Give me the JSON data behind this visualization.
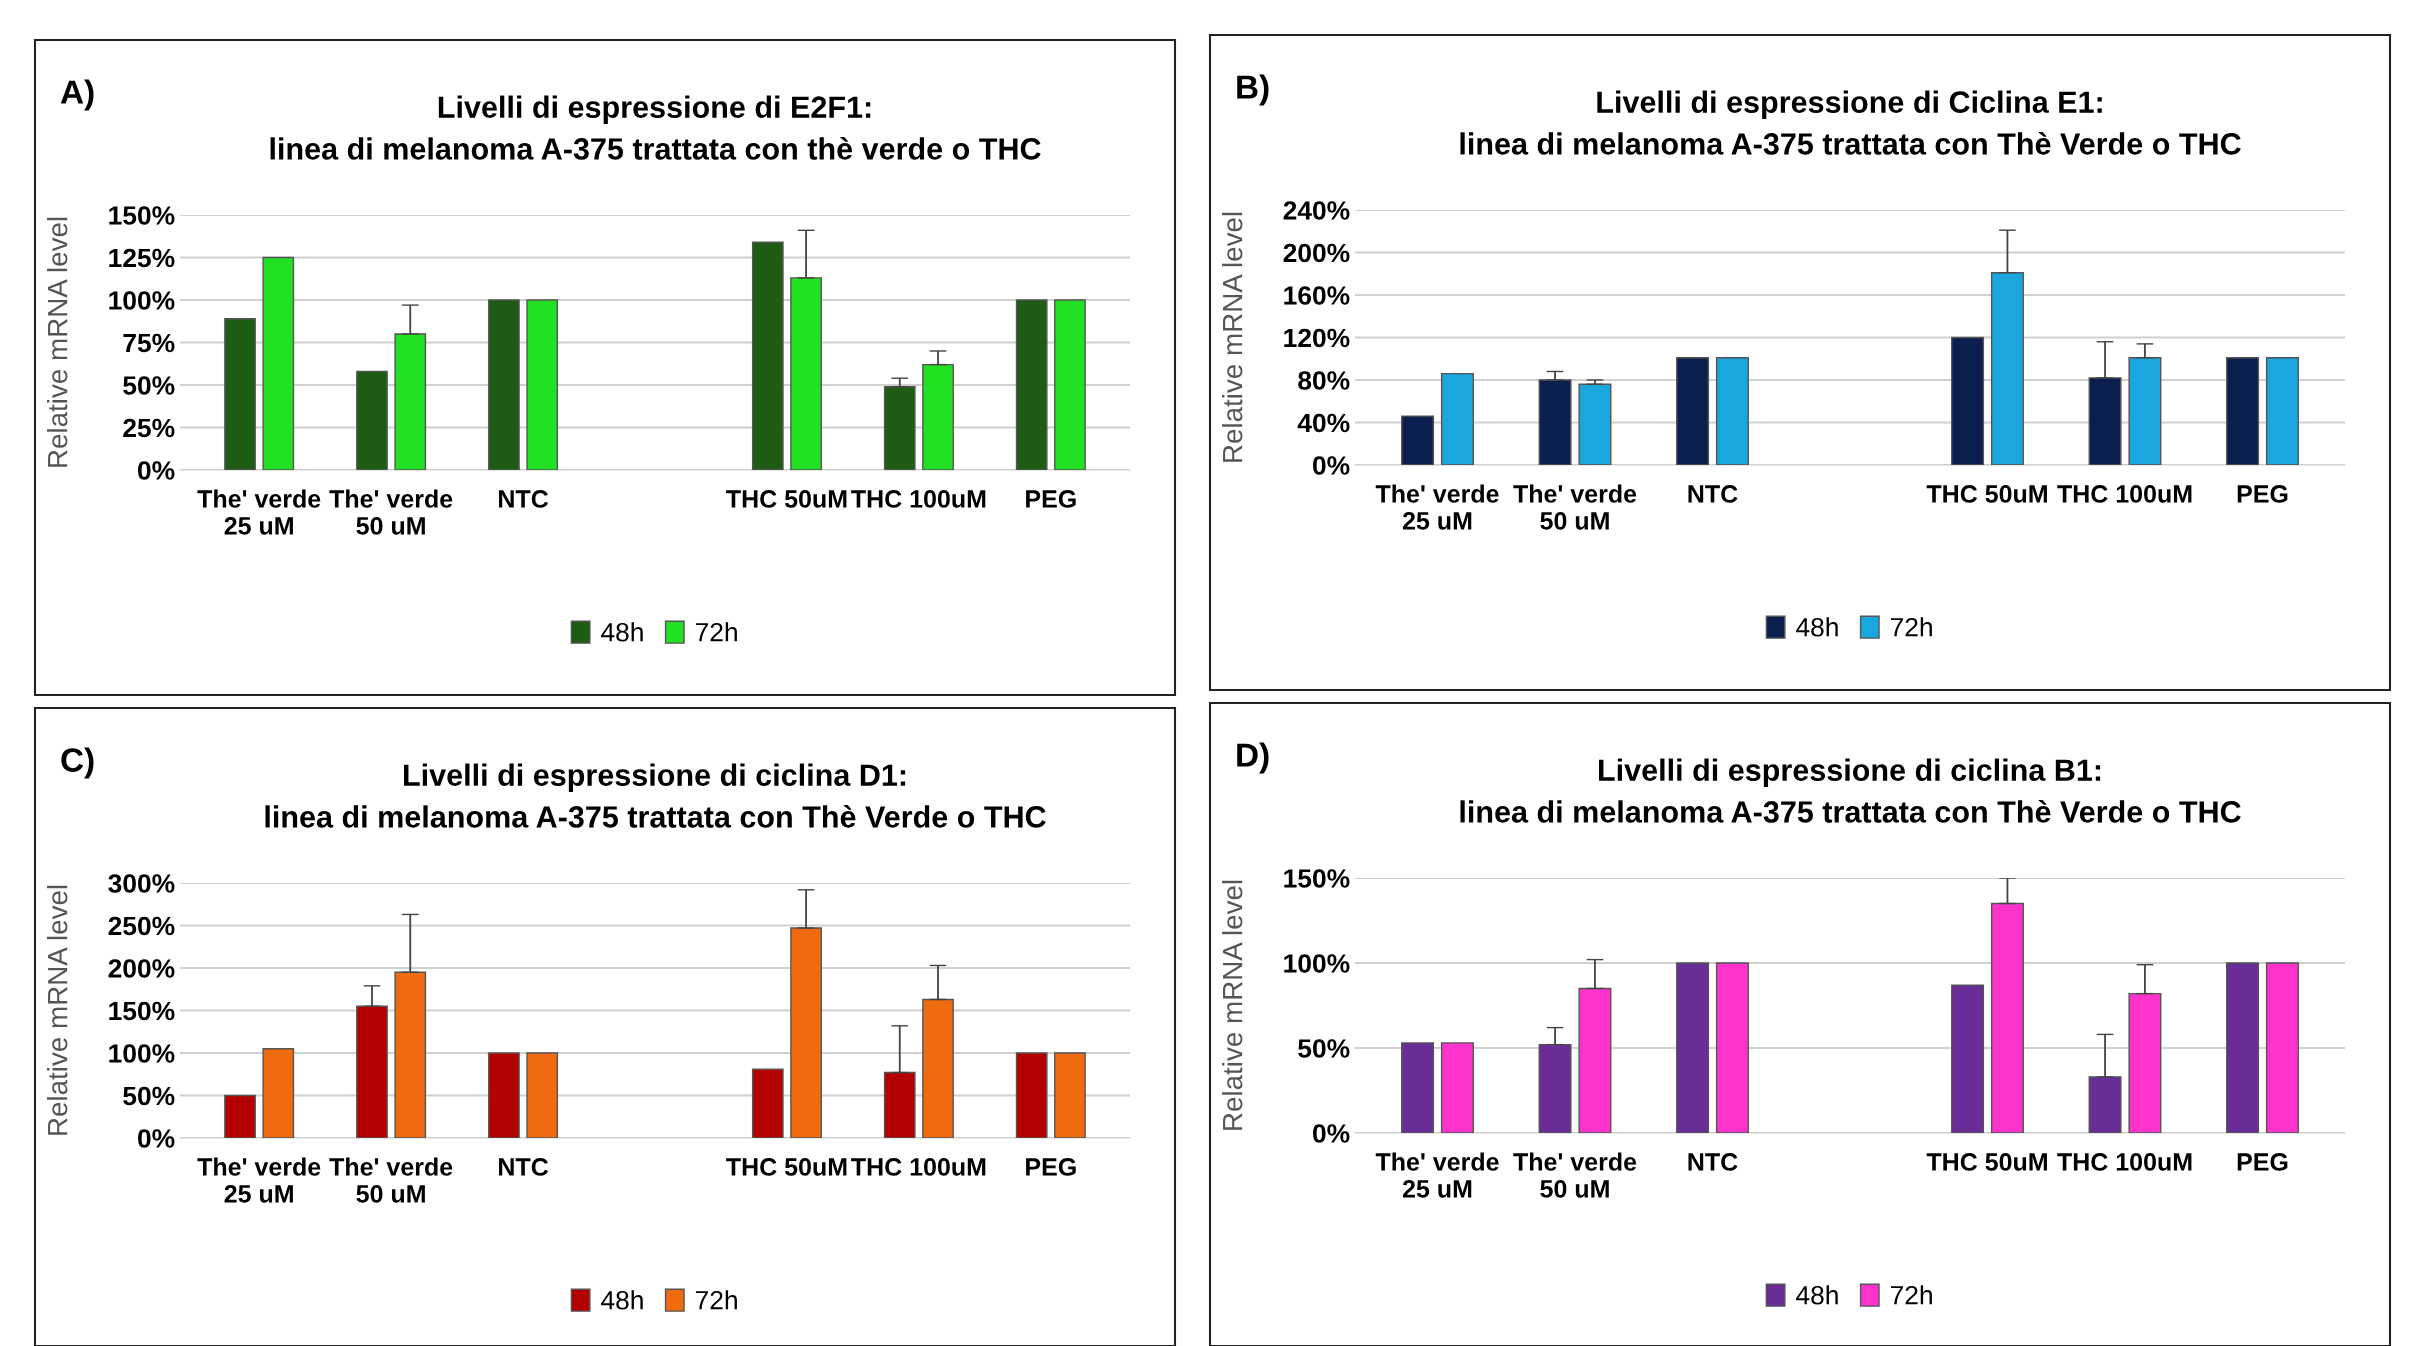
{
  "chart_data": [
    {
      "type": "bar",
      "title": "Livelli di espressione di E2F1:\nlinea di melanoma A-375 trattata con thè verde o THC",
      "ylabel": "Relative mRNA level",
      "annotations": [
        "A)"
      ],
      "categories": [
        "The' verde 25 uM",
        "The' verde 50 uM",
        "NTC",
        null,
        "THC 50uM",
        "THC 100uM",
        "PEG"
      ],
      "ylim": [
        0,
        150
      ],
      "yticks": [
        {
          "value": 0,
          "label": "0%"
        },
        {
          "value": 25,
          "label": "25%"
        },
        {
          "value": 50,
          "label": "50%"
        },
        {
          "value": 75,
          "label": "75%"
        },
        {
          "value": 100,
          "label": "100%"
        },
        {
          "value": 125,
          "label": "125%"
        },
        {
          "value": 150,
          "label": "150%"
        }
      ],
      "grid": "y",
      "legend": "bottom",
      "series": [
        {
          "name": "48h",
          "color": "#1e5c14",
          "values": [
            89,
            58,
            100,
            null,
            134,
            49,
            100
          ],
          "errors": [
            null,
            null,
            null,
            null,
            null,
            [
              49,
              54
            ],
            null
          ]
        },
        {
          "name": "72h",
          "color": "#22e022",
          "values": [
            125,
            80,
            100,
            null,
            113,
            62,
            100
          ],
          "errors": [
            null,
            [
              80,
              97
            ],
            null,
            null,
            [
              113,
              141
            ],
            [
              62,
              70
            ],
            null
          ]
        }
      ]
    },
    {
      "type": "bar",
      "title": "Livelli di espressione di Ciclina E1:\nlinea di melanoma A-375 trattata con Thè Verde o THC",
      "ylabel": "Relative mRNA level",
      "annotations": [
        "B)"
      ],
      "categories": [
        "The' verde 25 uM",
        "The' verde 50 uM",
        "NTC",
        null,
        "THC 50uM",
        "THC 100uM",
        "PEG"
      ],
      "ylim": [
        0,
        240
      ],
      "yticks": [
        {
          "value": 0,
          "label": "0%"
        },
        {
          "value": 40,
          "label": "40%"
        },
        {
          "value": 80,
          "label": "80%"
        },
        {
          "value": 120,
          "label": "120%"
        },
        {
          "value": 160,
          "label": "160%"
        },
        {
          "value": 200,
          "label": "200%"
        },
        {
          "value": 240,
          "label": "240%"
        }
      ],
      "grid": "y",
      "legend": "bottom",
      "series": [
        {
          "name": "48h",
          "color": "#0b1f4f",
          "values": [
            46,
            80,
            101,
            null,
            120,
            82,
            101
          ],
          "errors": [
            null,
            [
              80,
              88
            ],
            null,
            null,
            null,
            [
              82,
              116
            ],
            null
          ]
        },
        {
          "name": "72h",
          "color": "#1aa7e0",
          "values": [
            86,
            76,
            101,
            null,
            181,
            101,
            101
          ],
          "errors": [
            null,
            [
              76,
              80
            ],
            null,
            null,
            [
              181,
              221
            ],
            [
              101,
              114
            ],
            null
          ]
        }
      ]
    },
    {
      "type": "bar",
      "title": "Livelli di espressione di ciclina D1:\nlinea di melanoma A-375 trattata con Thè Verde o THC",
      "ylabel": "Relative mRNA level",
      "annotations": [
        "C)"
      ],
      "categories": [
        "The' verde 25 uM",
        "The' verde 50 uM",
        "NTC",
        null,
        "THC 50uM",
        "THC 100uM",
        "PEG"
      ],
      "ylim": [
        0,
        300
      ],
      "yticks": [
        {
          "value": 0,
          "label": "0%"
        },
        {
          "value": 50,
          "label": "50%"
        },
        {
          "value": 100,
          "label": "100%"
        },
        {
          "value": 150,
          "label": "150%"
        },
        {
          "value": 200,
          "label": "200%"
        },
        {
          "value": 250,
          "label": "250%"
        },
        {
          "value": 300,
          "label": "300%"
        }
      ],
      "grid": "y",
      "legend": "bottom",
      "series": [
        {
          "name": "48h",
          "color": "#b30000",
          "values": [
            50,
            155,
            100,
            null,
            81,
            77,
            100
          ],
          "errors": [
            null,
            [
              155,
              179
            ],
            null,
            null,
            null,
            [
              77,
              132
            ],
            null
          ]
        },
        {
          "name": "72h",
          "color": "#f06a10",
          "values": [
            105,
            195,
            100,
            null,
            247,
            163,
            100
          ],
          "errors": [
            null,
            [
              195,
              263
            ],
            null,
            null,
            [
              247,
              292
            ],
            [
              163,
              203
            ],
            null
          ]
        }
      ]
    },
    {
      "type": "bar",
      "title": "Livelli di espressione di ciclina B1:\nlinea di melanoma A-375 trattata con Thè Verde o THC",
      "ylabel": "Relative mRNA level",
      "annotations": [
        "D)"
      ],
      "categories": [
        "The' verde 25 uM",
        "The' verde 50 uM",
        "NTC",
        null,
        "THC 50uM",
        "THC 100uM",
        "PEG"
      ],
      "ylim": [
        0,
        150
      ],
      "yticks": [
        {
          "value": 0,
          "label": "0%"
        },
        {
          "value": 50,
          "label": "50%"
        },
        {
          "value": 100,
          "label": "100%"
        },
        {
          "value": 150,
          "label": "150%"
        }
      ],
      "grid": "y",
      "legend": "bottom",
      "series": [
        {
          "name": "48h",
          "color": "#6a2c96",
          "values": [
            53,
            52,
            100,
            null,
            87,
            33,
            100
          ],
          "errors": [
            null,
            [
              52,
              62
            ],
            null,
            null,
            null,
            [
              33,
              58
            ],
            null
          ]
        },
        {
          "name": "72h",
          "color": "#ff33cc",
          "values": [
            53,
            85,
            100,
            null,
            135,
            82,
            100
          ],
          "errors": [
            null,
            [
              85,
              102
            ],
            null,
            null,
            [
              135,
              150
            ],
            [
              82,
              99
            ],
            null
          ]
        }
      ]
    }
  ]
}
